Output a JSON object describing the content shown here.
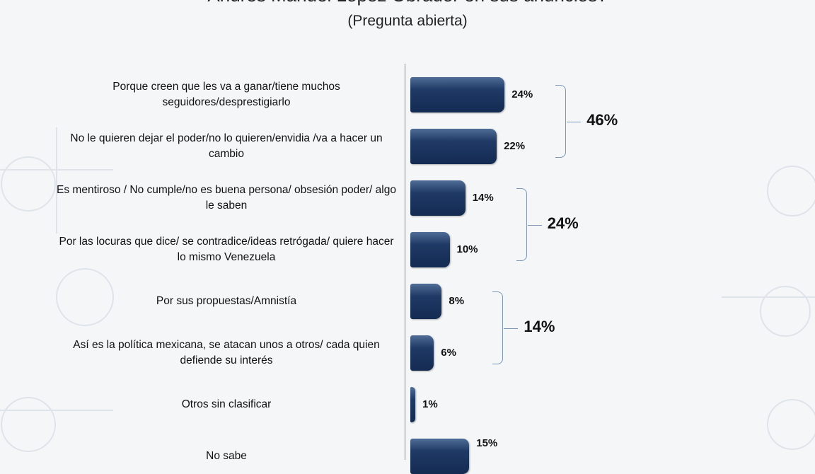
{
  "chart_data": {
    "type": "bar",
    "orientation": "horizontal",
    "title": "Andrés Manuel López Obrador en sus anuncios?",
    "subtitle": "(Pregunta abierta)",
    "categories": [
      "Porque creen que les va a ganar/tiene muchos seguidores/desprestigiarlo",
      "No le quieren dejar el poder/no lo quieren/envidia /va a hacer un cambio",
      "Es mentiroso / No cumple/no es buena persona/ obsesión poder/ algo le saben",
      "Por las locuras que dice/ se contradice/ideas retrógada/ quiere hacer lo mismo Venezuela",
      "Por sus propuestas/Amnistía",
      "Así es la política mexicana, se atacan unos a otros/ cada quien defiende su interés",
      "Otros sin clasificar",
      "No sabe"
    ],
    "values": [
      24,
      22,
      14,
      10,
      8,
      6,
      1,
      15
    ],
    "value_labels": [
      "24%",
      "22%",
      "14%",
      "10%",
      "8%",
      "6%",
      "1%",
      "15%"
    ],
    "groups": [
      {
        "label": "46%",
        "members": [
          0,
          1
        ]
      },
      {
        "label": "24%",
        "members": [
          2,
          3
        ]
      },
      {
        "label": "14%",
        "members": [
          4,
          5
        ]
      }
    ],
    "bar_color": "#1f3a66",
    "xlim": [
      0,
      100
    ],
    "grid": false
  }
}
